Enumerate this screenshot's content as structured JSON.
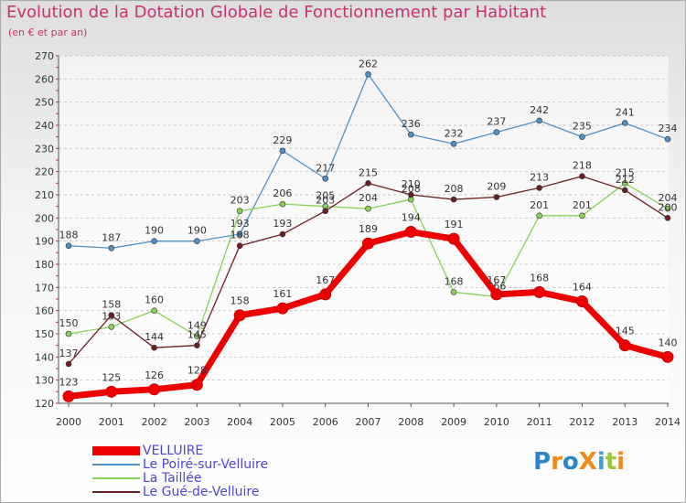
{
  "title": "Evolution de la Dotation Globale de Fonctionnement par Habitant",
  "subtitle": "(en € et par an)",
  "logo_text": "ProXiti",
  "logo_letters": [
    {
      "ch": "P",
      "color": "#2a84c8"
    },
    {
      "ch": "r",
      "color": "#f08a1c"
    },
    {
      "ch": "o",
      "color": "#2a84c8"
    },
    {
      "ch": "X",
      "color": "#f08a1c"
    },
    {
      "ch": "i",
      "color": "#3aa0d8"
    },
    {
      "ch": "t",
      "color": "#9ac83a"
    },
    {
      "ch": "i",
      "color": "#f08a1c"
    }
  ],
  "chart_data": {
    "type": "line",
    "title": "Evolution de la Dotation Globale de Fonctionnement par Habitant",
    "subtitle": "(en € et par an)",
    "x": [
      2000,
      2001,
      2002,
      2003,
      2004,
      2005,
      2006,
      2007,
      2008,
      2009,
      2010,
      2011,
      2012,
      2013,
      2014
    ],
    "ylim": [
      120,
      270
    ],
    "yticks": [
      120,
      130,
      140,
      150,
      160,
      170,
      180,
      190,
      200,
      210,
      220,
      230,
      240,
      250,
      260,
      270
    ],
    "grid": "horizontal dashed",
    "legend_position": "bottom-left",
    "series": [
      {
        "name": "Le Poiré-sur-Velluire",
        "color": "#4f90c8",
        "values": [
          188,
          187,
          190,
          190,
          193,
          229,
          217,
          262,
          236,
          232,
          237,
          242,
          235,
          241,
          234
        ],
        "labels": [
          "188",
          "187",
          "190",
          "190",
          "193",
          "229",
          "217",
          "262",
          "236",
          "232",
          "237",
          "242",
          "235",
          "241",
          "234"
        ]
      },
      {
        "name": "La Taillée",
        "color": "#88d05a",
        "values": [
          150,
          153,
          160,
          149,
          203,
          206,
          205,
          204,
          208,
          168,
          166,
          201,
          201,
          215,
          204
        ],
        "labels": [
          "150",
          "153",
          "160",
          "149",
          "203",
          "206",
          "205",
          "204",
          "208",
          "168",
          "166",
          "201",
          "201",
          "215",
          "204"
        ]
      },
      {
        "name": "Le Gué-de-Velluire",
        "color": "#6b1f23",
        "values": [
          137,
          158,
          144,
          145,
          188,
          193,
          203,
          215,
          210,
          208,
          209,
          213,
          218,
          212,
          200
        ],
        "labels": [
          "137",
          "158",
          "144",
          "145",
          "188",
          "193",
          "203",
          "215",
          "210",
          "208",
          "209",
          "213",
          "218",
          "212",
          "200"
        ]
      },
      {
        "name": "VELLUIRE",
        "color": "#ee0000",
        "values": [
          123,
          125,
          126,
          128,
          158,
          161,
          167,
          189,
          194,
          191,
          167,
          168,
          164,
          145,
          140
        ],
        "labels": [
          "123",
          "125",
          "126",
          "128",
          "158",
          "161",
          "167",
          "189",
          "194",
          "191",
          "167",
          "168",
          "164",
          "145",
          "140"
        ]
      }
    ],
    "legend": [
      {
        "name": "VELLUIRE",
        "color": "#ee0000"
      },
      {
        "name": "Le Poiré-sur-Velluire",
        "color": "#4f90c8"
      },
      {
        "name": "La Taillée",
        "color": "#88d05a"
      },
      {
        "name": "Le Gué-de-Velluire",
        "color": "#6b1f23"
      }
    ]
  }
}
